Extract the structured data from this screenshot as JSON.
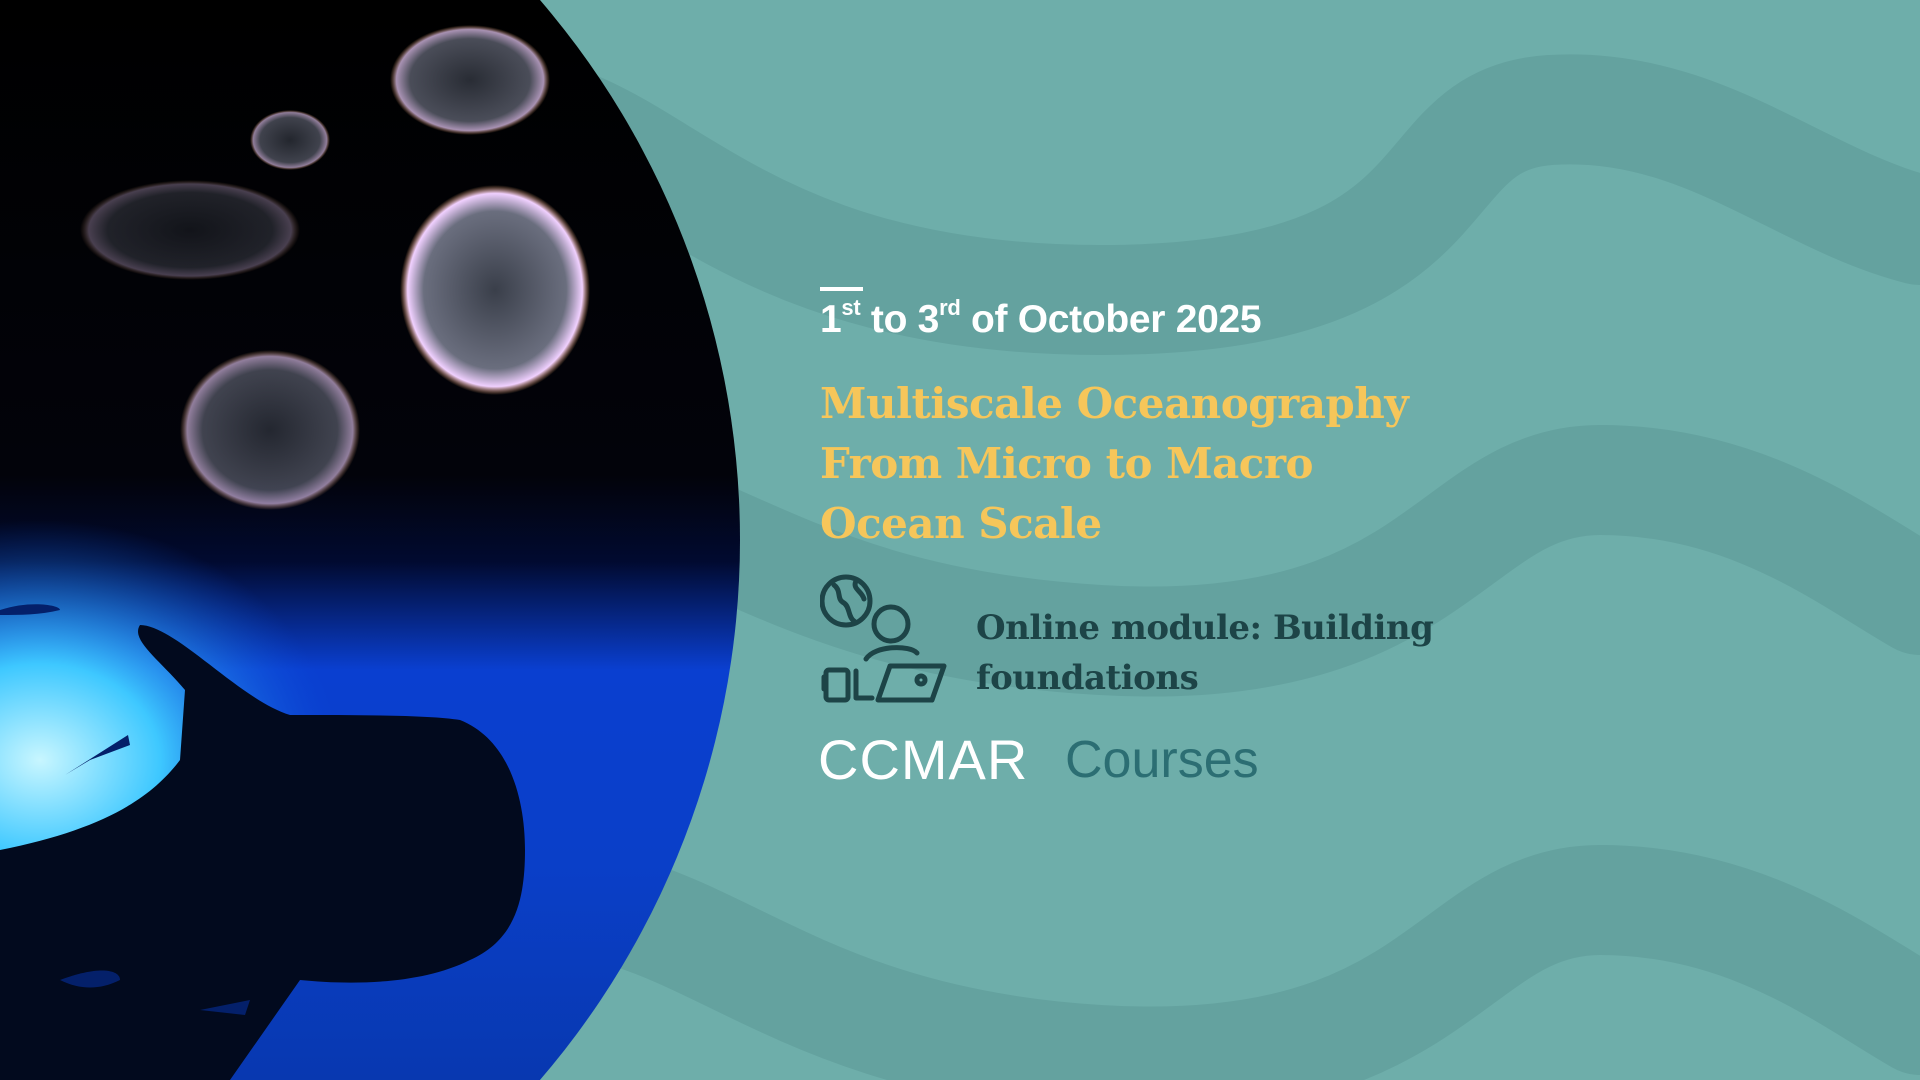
{
  "colors": {
    "background": "#6eaeaa",
    "wave": "#64a29f",
    "title": "#f6c65a",
    "module_text": "#1d4447",
    "courses": "#2c6e73",
    "white": "#ffffff"
  },
  "event": {
    "date": {
      "day_start": "1",
      "day_start_suffix": "st",
      "connector": "to",
      "day_end": "3",
      "day_end_suffix": "rd",
      "rest": "of October 2025"
    },
    "title_lines": [
      "Multiscale Oceanography",
      "From Micro to Macro",
      "Ocean Scale"
    ],
    "module_lines": [
      "Online module: Building",
      "foundations"
    ],
    "module_icon": "online-learning-globe-person-laptop-icon"
  },
  "brand": {
    "logo_text": "CCMAR",
    "product": "Courses"
  },
  "photo": {
    "subject": "plankton and whale shark underwater photo"
  }
}
